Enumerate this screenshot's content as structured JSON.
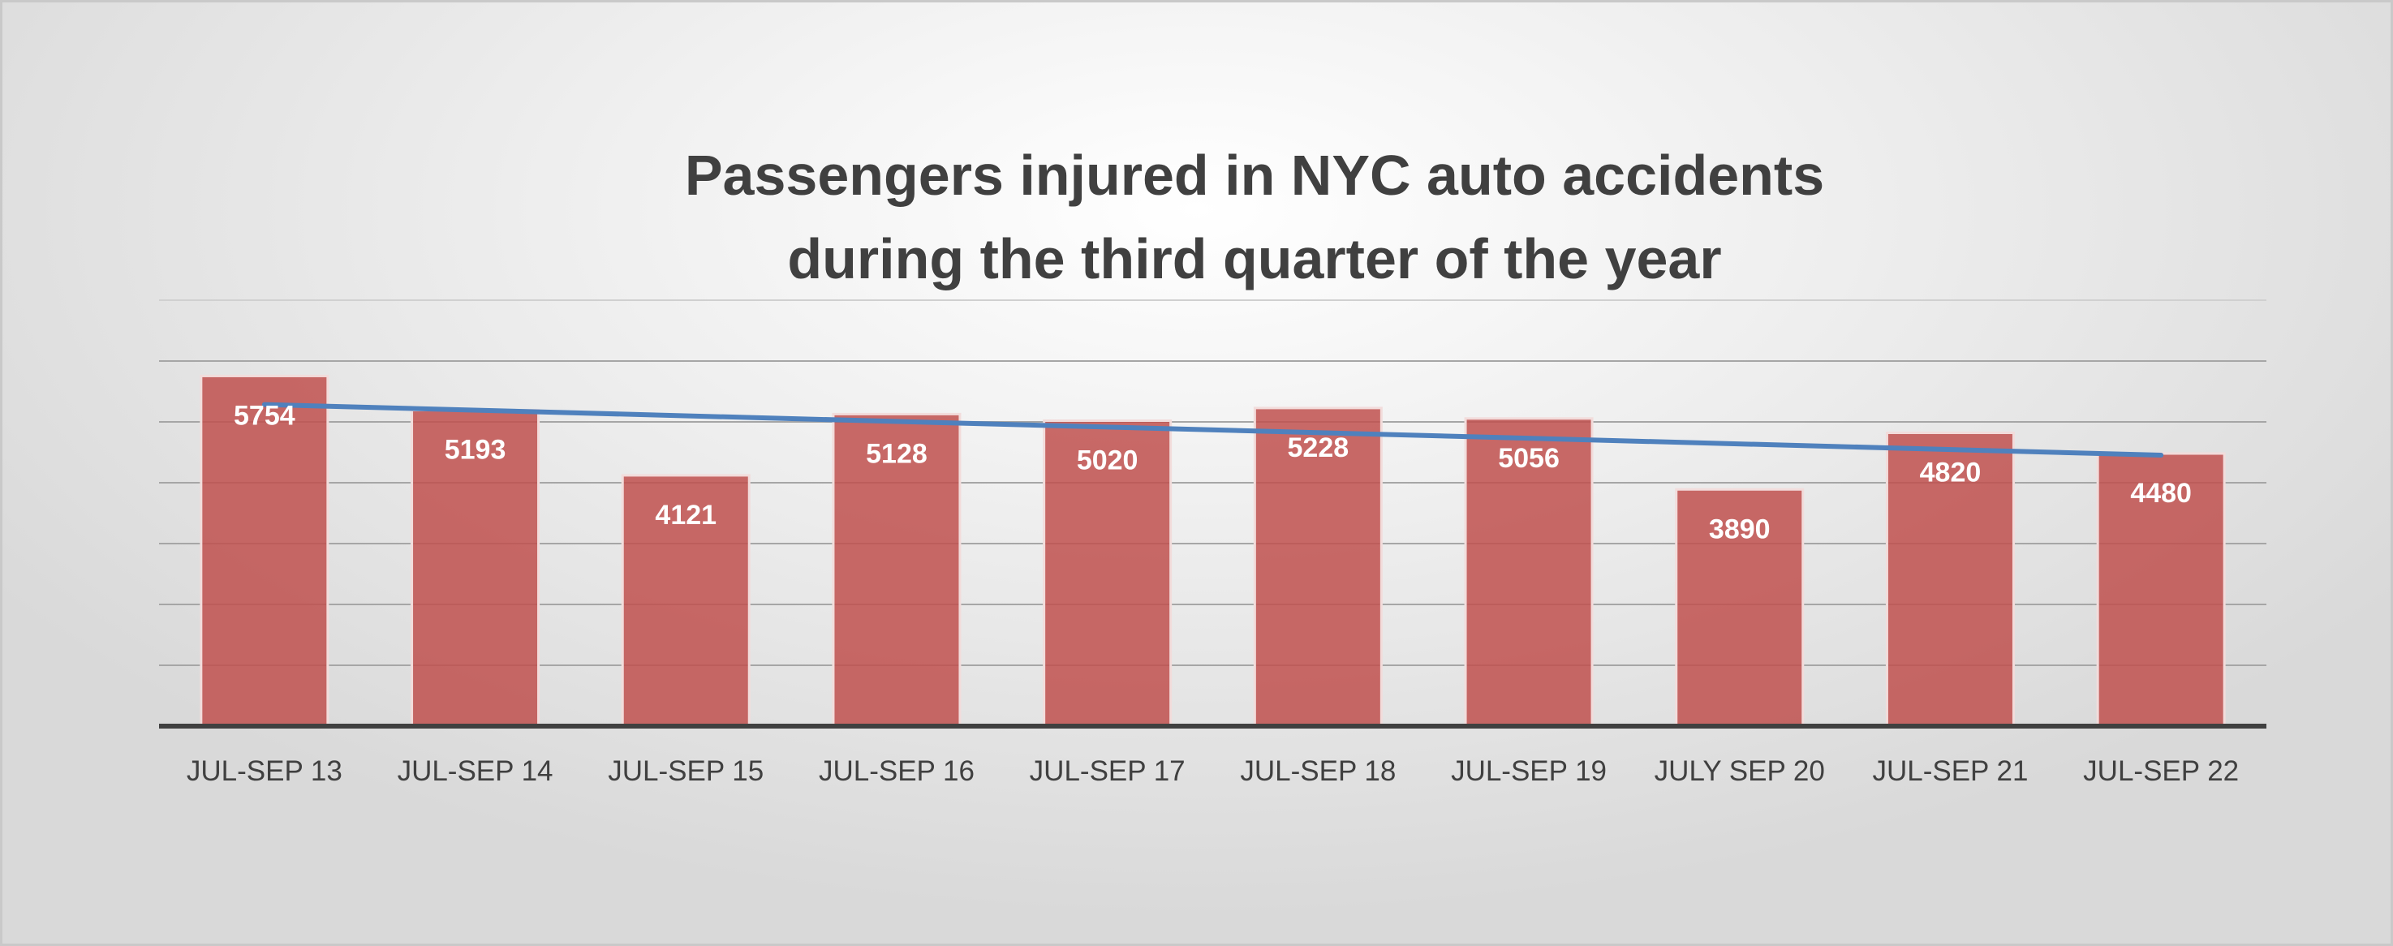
{
  "chart_data": {
    "type": "bar",
    "title_lines": [
      "Passengers injured in NYC auto accidents",
      "during the third quarter of the year"
    ],
    "categories": [
      "JUL-SEP 13",
      "JUL-SEP 14",
      "JUL-SEP 15",
      "JUL-SEP 16",
      "JUL-SEP 17",
      "JUL-SEP 18",
      "JUL-SEP 19",
      "JULY SEP 20",
      "JUL-SEP 21",
      "JUL-SEP 22"
    ],
    "values": [
      5754,
      5193,
      4121,
      5128,
      5020,
      5228,
      5056,
      3890,
      4820,
      4480
    ],
    "data_labels": [
      "5754",
      "5193",
      "4121",
      "5128",
      "5020",
      "5228",
      "5056",
      "3890",
      "4820",
      "4480"
    ],
    "trendline": {
      "type": "linear",
      "color": "#4f81bd"
    },
    "ylim": [
      0,
      7000
    ],
    "grid_step": 1000,
    "grid": true,
    "y_tick_labels_shown": false,
    "colors": {
      "bar": "#c0504d",
      "trend": "#4f81bd",
      "title": "#404040",
      "axis": "#404040"
    }
  }
}
